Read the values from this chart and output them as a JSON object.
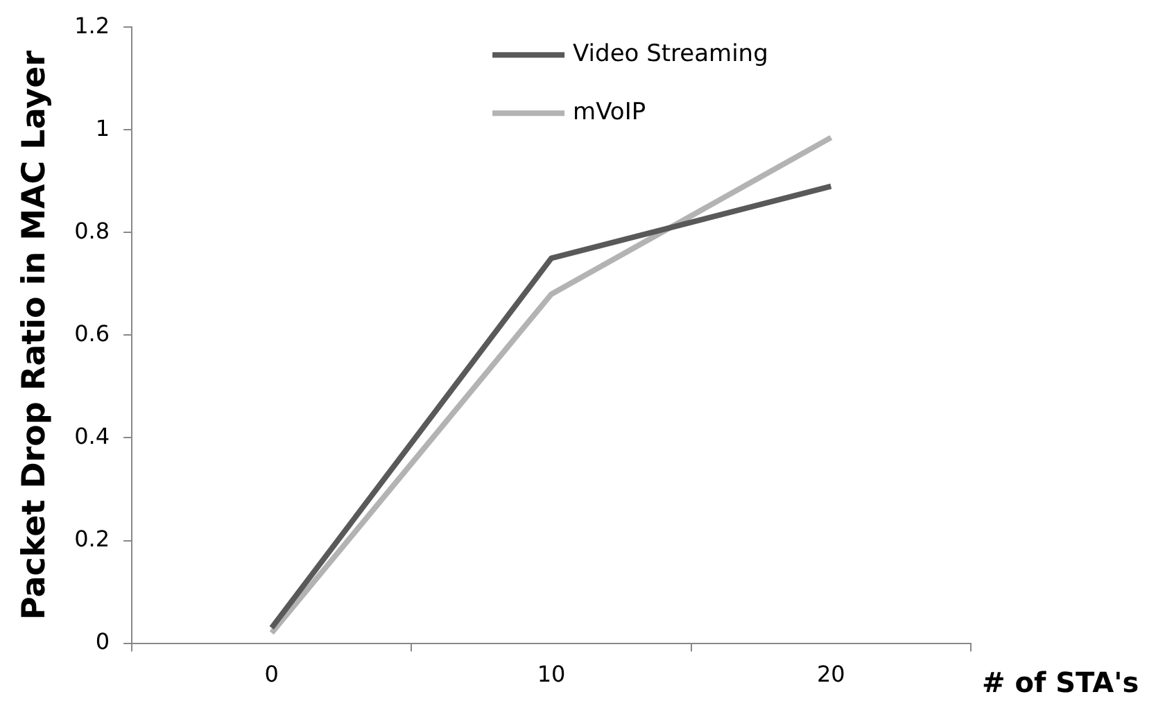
{
  "chart_data": {
    "type": "line",
    "xlabel": "# of STA's",
    "ylabel": "Packet Drop Ratio in MAC Layer",
    "categories": [
      "0",
      "10",
      "20"
    ],
    "series": [
      {
        "name": "Video Streaming",
        "color": "#595959",
        "values": [
          0.03,
          0.75,
          0.89
        ]
      },
      {
        "name": "mVoIP",
        "color": "#b3b3b3",
        "values": [
          0.02,
          0.68,
          0.985
        ]
      }
    ],
    "ylim": [
      0,
      1.2
    ],
    "yticks": [
      0,
      {
        "value": 0.2,
        "label": "0.2"
      },
      {
        "value": 0.4,
        "label": "0.4"
      },
      {
        "value": 0.6,
        "label": "0.6"
      },
      {
        "value": 0.8,
        "label": "0.8"
      },
      1,
      {
        "value": 1.2,
        "label": "1.2"
      }
    ],
    "grid": false,
    "legend": "top",
    "marker": "none",
    "line_style": "solid"
  }
}
